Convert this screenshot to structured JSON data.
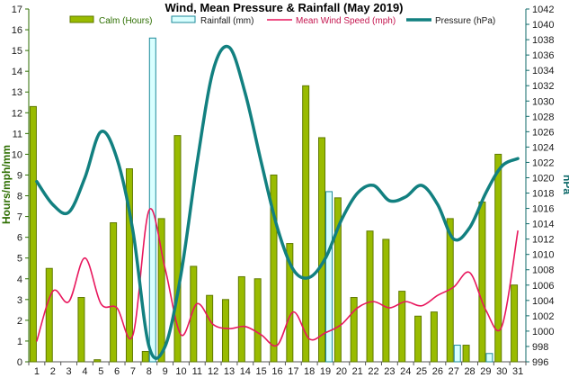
{
  "chart_data": {
    "type": "bar+line",
    "title": "Wind, Mean Pressure & Rainfall (May 2019)",
    "ylabel_left": "Hours/mph/mm",
    "ylabel_right": "hPa",
    "ylim_left": [
      0,
      17
    ],
    "ylim_right": [
      996,
      1042
    ],
    "x": [
      1,
      2,
      3,
      4,
      5,
      6,
      7,
      8,
      9,
      10,
      11,
      12,
      13,
      14,
      15,
      16,
      17,
      18,
      19,
      20,
      21,
      22,
      23,
      24,
      25,
      26,
      27,
      28,
      29,
      30,
      31
    ],
    "series": [
      {
        "name": "Calm (Hours)",
        "type": "bar",
        "axis": "left",
        "color": "#99bb00",
        "values": [
          12.3,
          4.5,
          0,
          3.1,
          0.1,
          6.7,
          9.3,
          0.5,
          6.9,
          10.9,
          4.6,
          3.2,
          3.0,
          4.1,
          4.0,
          9.0,
          5.7,
          13.3,
          10.8,
          7.9,
          3.1,
          6.3,
          5.9,
          3.4,
          2.2,
          2.4,
          6.9,
          0.8,
          7.7,
          10.0,
          3.7
        ]
      },
      {
        "name": "Rainfall (mm)",
        "type": "bar",
        "axis": "left",
        "color": "#d9ffff",
        "values": [
          0,
          0,
          0,
          0,
          0,
          0,
          0,
          15.6,
          0,
          0,
          0,
          0,
          0,
          0,
          0,
          0,
          0,
          0,
          8.2,
          0,
          0,
          0,
          0,
          0,
          0,
          0,
          0.8,
          0,
          0.4,
          0,
          0
        ]
      },
      {
        "name": "Mean Wind Speed (mph)",
        "type": "line",
        "axis": "left",
        "color": "#e8175d",
        "values": [
          1.0,
          3.4,
          2.9,
          5.0,
          2.8,
          2.6,
          1.3,
          7.3,
          4.5,
          1.3,
          2.8,
          1.8,
          1.6,
          1.7,
          1.3,
          0.8,
          2.4,
          1.1,
          1.4,
          1.8,
          2.6,
          2.9,
          2.6,
          2.9,
          2.7,
          3.2,
          3.6,
          4.3,
          2.5,
          1.7,
          6.3
        ]
      },
      {
        "name": "Pressure (hPa)",
        "type": "line",
        "axis": "right",
        "color": "#128080",
        "values": [
          1019.5,
          1016.5,
          1015.5,
          1020.0,
          1026.0,
          1022.5,
          1013.0,
          998.0,
          998.0,
          1007.5,
          1022.0,
          1034.0,
          1037.0,
          1031.0,
          1022.0,
          1013.5,
          1008.0,
          1007.0,
          1009.5,
          1014.5,
          1018.0,
          1019.0,
          1017.0,
          1017.5,
          1019.0,
          1016.5,
          1012.0,
          1013.5,
          1018.0,
          1021.5,
          1022.5
        ]
      }
    ],
    "grid": false,
    "legend": "top"
  }
}
